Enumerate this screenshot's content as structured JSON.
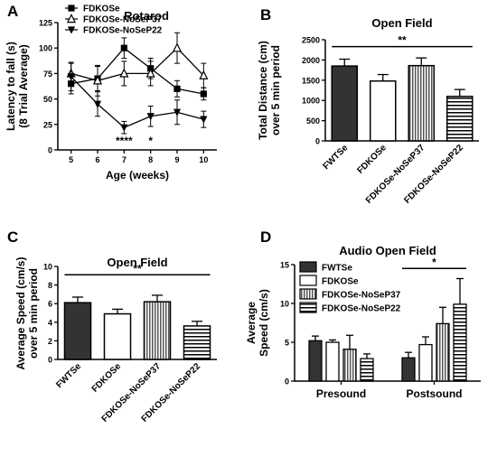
{
  "chart_data": [
    {
      "panel": "A",
      "type": "line",
      "title": "Rotarod",
      "xlabel": "Age (weeks)",
      "ylabel_lines": [
        "Latency to fall (s)",
        "(8 Trial Average)"
      ],
      "x": [
        5,
        6,
        7,
        8,
        9,
        10
      ],
      "xlim": [
        4.5,
        10.5
      ],
      "ylim": [
        0,
        125
      ],
      "yticks": [
        0,
        25,
        50,
        75,
        100,
        125
      ],
      "legend_position": "top-left",
      "series": [
        {
          "name": "FDKOSe",
          "marker": "square",
          "values": [
            65,
            70,
            100,
            80,
            60,
            55
          ],
          "errors": [
            10,
            12,
            10,
            10,
            8,
            6
          ]
        },
        {
          "name": "FDKOSe-NoSeP37",
          "marker": "triangle-up-open",
          "values": [
            75,
            68,
            75,
            75,
            100,
            73
          ],
          "errors": [
            10,
            15,
            12,
            12,
            15,
            12
          ]
        },
        {
          "name": "FDKOSe-NoSeP22",
          "marker": "triangle-down",
          "values": [
            72,
            45,
            22,
            33,
            37,
            30
          ],
          "errors": [
            14,
            12,
            6,
            10,
            12,
            8
          ]
        }
      ],
      "annotations": [
        {
          "text": "****",
          "x": 7
        },
        {
          "text": "*",
          "x": 8
        }
      ]
    },
    {
      "panel": "B",
      "type": "bar",
      "title": "Open Field",
      "ylabel_lines": [
        "Total Distance (cm)",
        "over 5 min period"
      ],
      "categories": [
        "FWTSe",
        "FDKOSe",
        "FDKOSe-NoSeP37",
        "FDKOSe-NoSeP22"
      ],
      "patterns": [
        "solid-dark",
        "white",
        "vertical-stripes",
        "horizontal-stripes"
      ],
      "values": [
        1850,
        1480,
        1860,
        1100
      ],
      "errors": [
        170,
        160,
        190,
        170
      ],
      "ylim": [
        0,
        2500
      ],
      "yticks": [
        0,
        500,
        1000,
        1500,
        2000,
        2500
      ],
      "significance": {
        "text": "**",
        "from": 0,
        "to": 3,
        "y": 2330
      }
    },
    {
      "panel": "C",
      "type": "bar",
      "title": "Open Field",
      "ylabel_lines": [
        "Average Speed (cm/s)",
        "over 5 min period"
      ],
      "categories": [
        "FWTSe",
        "FDKOSe",
        "FDKOSe-NoSeP37",
        "FDKOSe-NoSeP22"
      ],
      "patterns": [
        "solid-dark",
        "white",
        "vertical-stripes",
        "horizontal-stripes"
      ],
      "values": [
        6.1,
        4.9,
        6.2,
        3.6
      ],
      "errors": [
        0.6,
        0.5,
        0.7,
        0.5
      ],
      "ylim": [
        0,
        10
      ],
      "yticks": [
        0,
        2,
        4,
        6,
        8,
        10
      ],
      "significance": {
        "text": "**",
        "from": 0,
        "to": 3,
        "y": 9.1
      }
    },
    {
      "panel": "D",
      "type": "bar",
      "title": "Audio Open Field",
      "ylabel_lines": [
        "Average",
        "Speed (cm/s)"
      ],
      "categories": [
        "Presound",
        "Postsound"
      ],
      "ylim": [
        0,
        15
      ],
      "yticks": [
        0,
        5,
        10,
        15
      ],
      "legend_position": "top-left",
      "series": [
        {
          "name": "FWTSe",
          "pattern": "solid-dark",
          "values": [
            5.2,
            3.0
          ],
          "errors": [
            0.6,
            0.7
          ]
        },
        {
          "name": "FDKOSe",
          "pattern": "white",
          "values": [
            5.0,
            4.7
          ],
          "errors": [
            0.3,
            1.0
          ]
        },
        {
          "name": "FDKOSe-NoSeP37",
          "pattern": "vertical-stripes",
          "values": [
            4.1,
            7.4
          ],
          "errors": [
            1.8,
            2.1
          ]
        },
        {
          "name": "FDKOSe-NoSeP22",
          "pattern": "horizontal-stripes",
          "values": [
            2.9,
            9.9
          ],
          "errors": [
            0.6,
            3.3
          ]
        }
      ],
      "significance": {
        "text": "*",
        "from_group": 1,
        "y": 14.5
      }
    }
  ],
  "panel_labels": [
    "A",
    "B",
    "C",
    "D"
  ]
}
